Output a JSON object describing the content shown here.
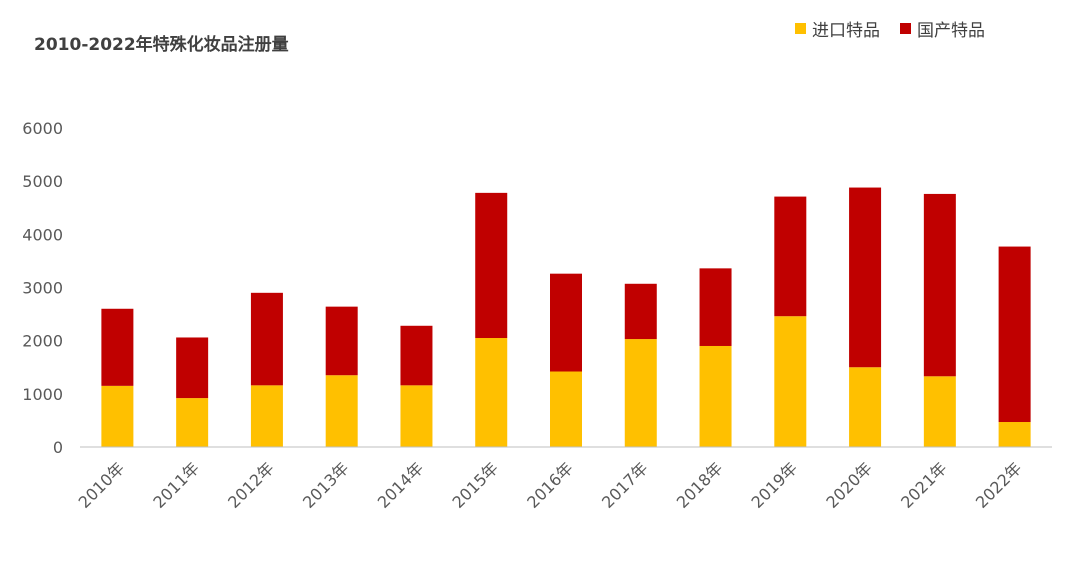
{
  "chart_data": {
    "type": "bar",
    "stacked": true,
    "title": "2010-2022年特殊化妆品注册量",
    "categories": [
      "2010年",
      "2011年",
      "2012年",
      "2013年",
      "2014年",
      "2015年",
      "2016年",
      "2017年",
      "2018年",
      "2019年",
      "2020年",
      "2021年",
      "2022年"
    ],
    "series": [
      {
        "name": "进口特品",
        "color": "#FFC000",
        "values": [
          1150,
          920,
          1160,
          1350,
          1160,
          2050,
          1420,
          2030,
          1900,
          2460,
          1500,
          1330,
          470
        ]
      },
      {
        "name": "国产特品",
        "color": "#C00000",
        "values": [
          1450,
          1140,
          1740,
          1290,
          1120,
          2730,
          1840,
          1040,
          1460,
          2250,
          3380,
          3430,
          3300
        ]
      }
    ],
    "ylim": [
      0,
      6000
    ],
    "yticks": [
      0,
      1000,
      2000,
      3000,
      4000,
      5000,
      6000
    ],
    "grid": false,
    "legend_position": "top-right"
  }
}
